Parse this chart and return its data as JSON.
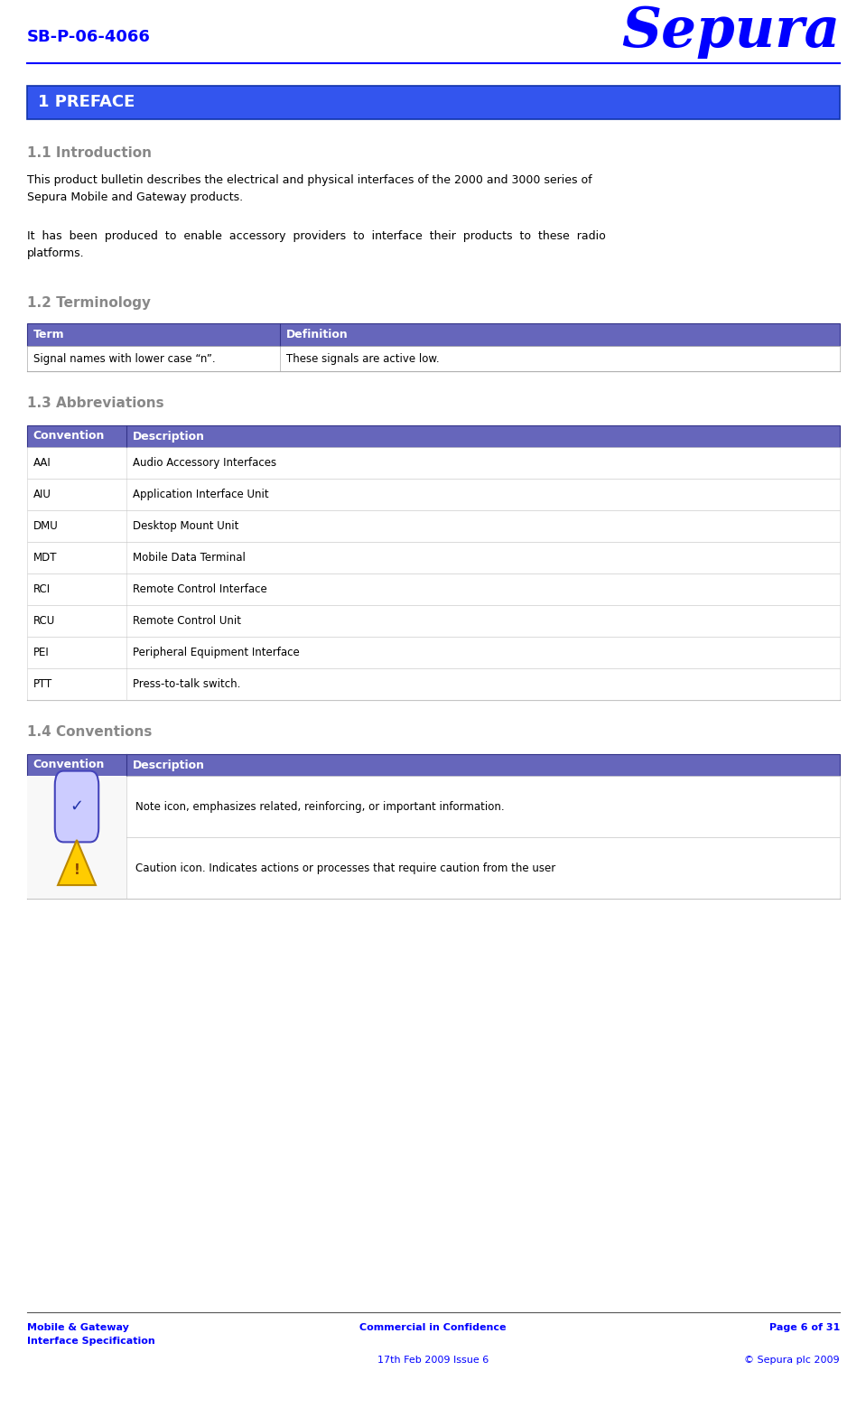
{
  "page_width": 9.59,
  "page_height": 15.59,
  "bg_color": "#ffffff",
  "blue_color": "#0000FF",
  "table_header_bg": "#6666BB",
  "section_heading_color": "#888888",
  "doc_id": "SB-P-06-4066",
  "company": "Sepura",
  "preface_title": "1 PREFACE",
  "section_11_title": "1.1 Introduction",
  "section_11_text1": "This product bulletin describes the electrical and physical interfaces of the 2000 and 3000 series of\nSepura Mobile and Gateway products.",
  "section_11_text2": "It  has  been  produced  to  enable  accessory  providers  to  interface  their  products  to  these  radio\nplatforms.",
  "section_12_title": "1.2 Terminology",
  "table1_headers": [
    "Term",
    "Definition"
  ],
  "table1_rows": [
    [
      "Signal names with lower case “n”.",
      "These signals are active low."
    ]
  ],
  "section_13_title": "1.3 Abbreviations",
  "table2_headers": [
    "Convention",
    "Description"
  ],
  "table2_rows": [
    [
      "AAI",
      "Audio Accessory Interfaces"
    ],
    [
      "AIU",
      "Application Interface Unit"
    ],
    [
      "DMU",
      "Desktop Mount Unit"
    ],
    [
      "MDT",
      "Mobile Data Terminal"
    ],
    [
      "RCI",
      "Remote Control Interface"
    ],
    [
      "RCU",
      "Remote Control Unit"
    ],
    [
      "PEI",
      "Peripheral Equipment Interface"
    ],
    [
      "PTT",
      "Press-to-talk switch."
    ]
  ],
  "section_14_title": "1.4 Conventions",
  "table3_headers": [
    "Convention",
    "Description"
  ],
  "table3_rows": [
    [
      "[note]",
      "Note icon, emphasizes related, reinforcing, or important information."
    ],
    [
      "[caution]",
      "Caution icon. Indicates actions or processes that require caution from the user"
    ]
  ],
  "footer_left": "Mobile & Gateway\nInterface Specification",
  "footer_center1": "Commercial in Confidence",
  "footer_center2": "17th Feb 2009 Issue 6",
  "footer_right1": "Page 6 of 31",
  "footer_right2": "© Sepura plc 2009"
}
